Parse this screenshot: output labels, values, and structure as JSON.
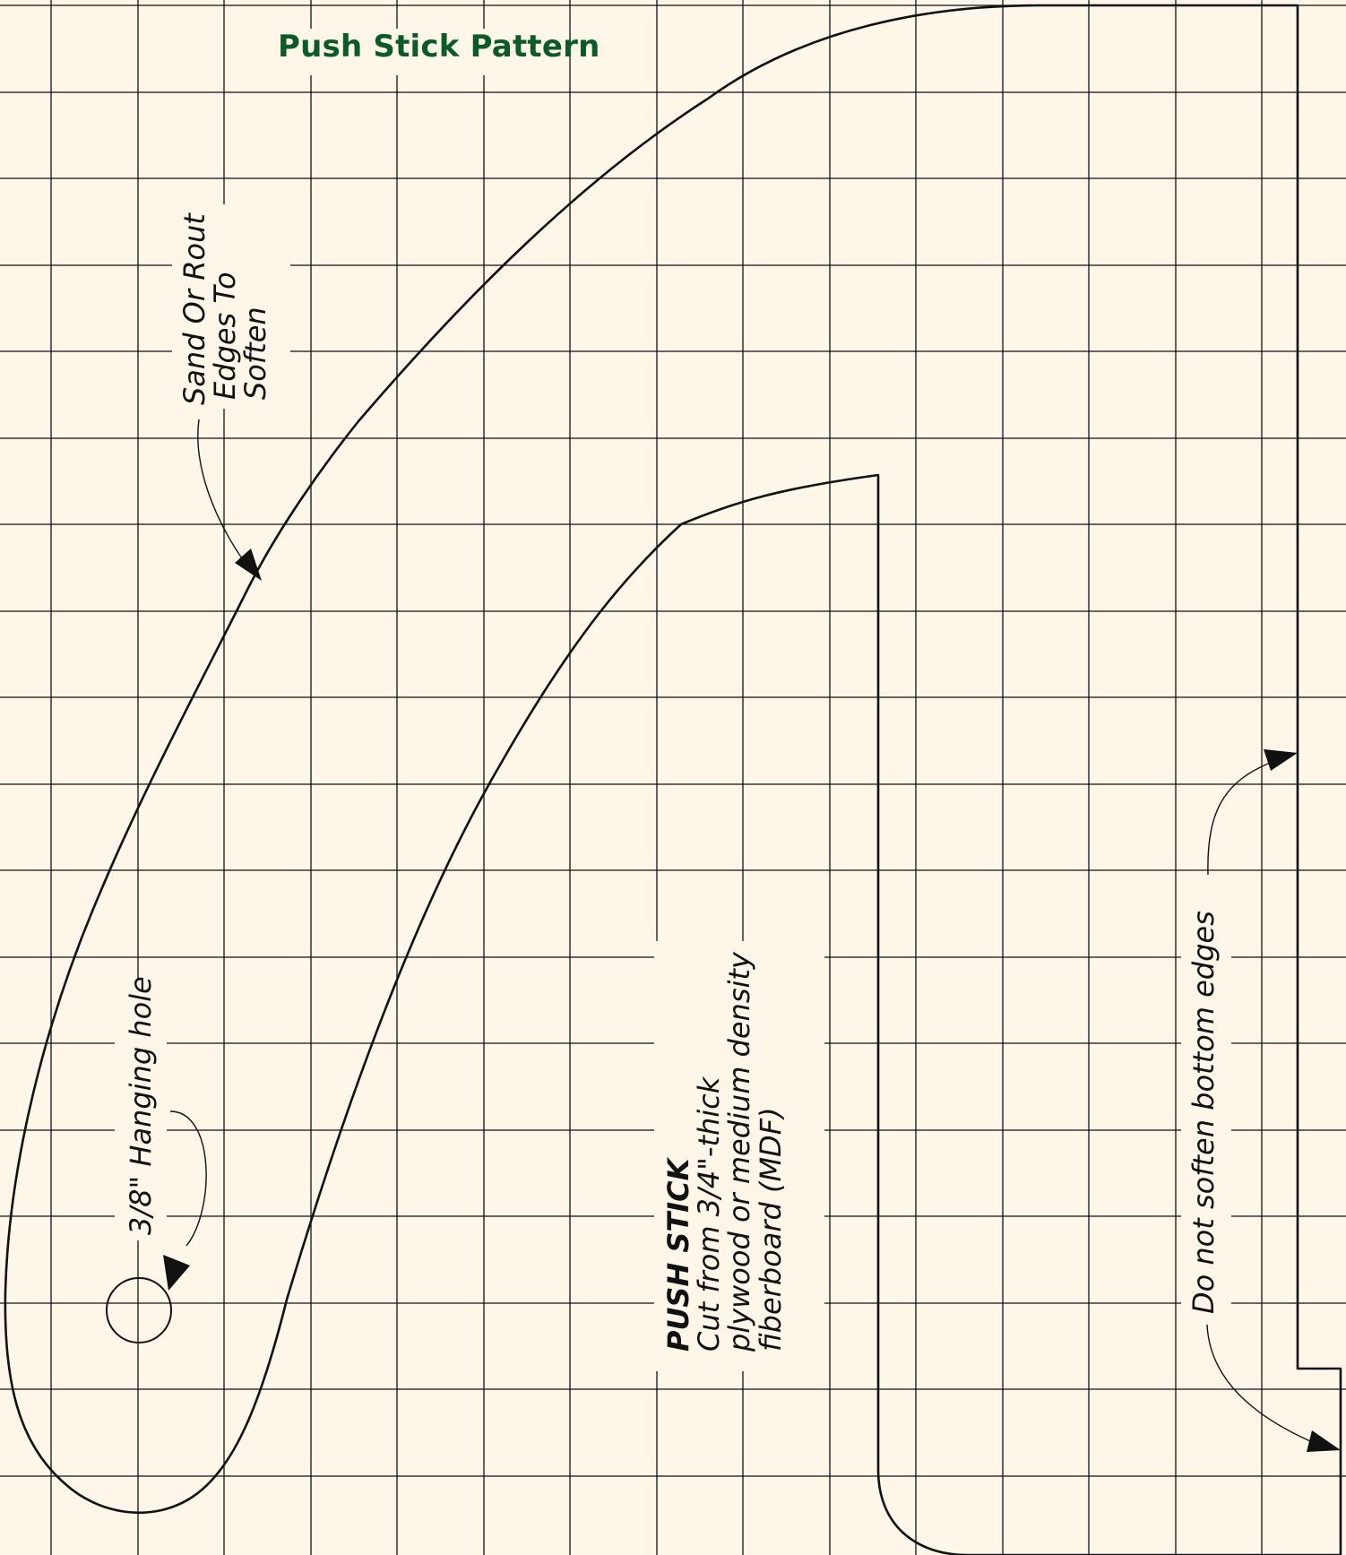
{
  "title": "Push Stick Pattern",
  "annotations": {
    "edges_note": [
      "Sand Or Rout",
      "Edges To",
      "Soften"
    ],
    "hole_note": "3/8\" Hanging hole",
    "stick_heading": "PUSH STICK",
    "stick_lines": [
      "Cut from 3/4\"-thick",
      "plywood or medium density",
      "fiberboard (MDF)"
    ],
    "bottom_note": "Do not soften bottom edges"
  },
  "colors": {
    "paper": "#fef7e9",
    "grid": "#111111",
    "outline": "#111111",
    "title": "#0b5a27"
  }
}
